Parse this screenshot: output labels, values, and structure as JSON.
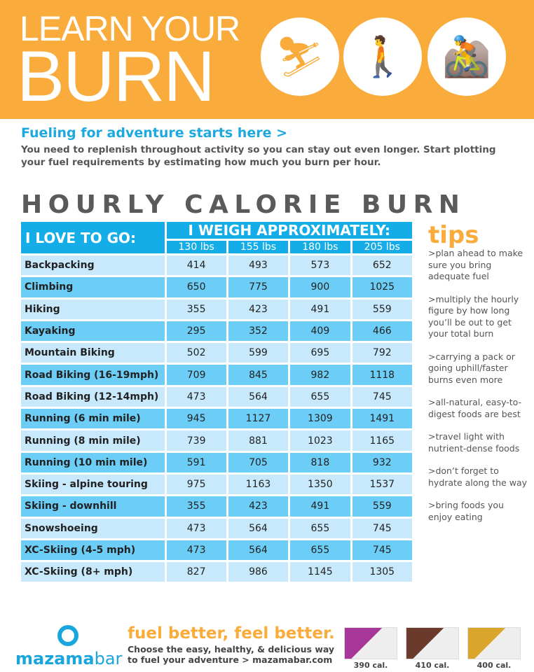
{
  "header": {
    "line1": "LEARN YOUR",
    "line2": "BURN",
    "icons": [
      "skier-icon",
      "hiker-icon",
      "mountain-biker-icon"
    ]
  },
  "subtitle": "Fueling for adventure starts here >",
  "intro": "You need to replenish throughout activity so you can stay out even longer. Start plotting your fuel requirements by estimating how much you burn per hour.",
  "title": "HOURLY CALORIE BURN",
  "table": {
    "activity_header": "I LOVE TO GO:",
    "weight_header": "I WEIGH APPROXIMATELY:",
    "weights": [
      "130 lbs",
      "155 lbs",
      "180 lbs",
      "205 lbs"
    ],
    "rows": [
      {
        "activity": "Backpacking",
        "values": [
          "414",
          "493",
          "573",
          "652"
        ]
      },
      {
        "activity": "Climbing",
        "values": [
          "650",
          "775",
          "900",
          "1025"
        ]
      },
      {
        "activity": "Hiking",
        "values": [
          "355",
          "423",
          "491",
          "559"
        ]
      },
      {
        "activity": "Kayaking",
        "values": [
          "295",
          "352",
          "409",
          "466"
        ]
      },
      {
        "activity": "Mountain Biking",
        "values": [
          "502",
          "599",
          "695",
          "792"
        ]
      },
      {
        "activity": "Road Biking (16-19mph)",
        "values": [
          "709",
          "845",
          "982",
          "1118"
        ]
      },
      {
        "activity": "Road Biking (12-14mph)",
        "values": [
          "473",
          "564",
          "655",
          "745"
        ]
      },
      {
        "activity": "Running (6 min mile)",
        "values": [
          "945",
          "1127",
          "1309",
          "1491"
        ]
      },
      {
        "activity": "Running (8 min mile)",
        "values": [
          "739",
          "881",
          "1023",
          "1165"
        ]
      },
      {
        "activity": "Running (10 min mile)",
        "values": [
          "591",
          "705",
          "818",
          "932"
        ]
      },
      {
        "activity": "Skiing - alpine touring",
        "values": [
          "975",
          "1163",
          "1350",
          "1537"
        ]
      },
      {
        "activity": "Skiing - downhill",
        "values": [
          "355",
          "423",
          "491",
          "559"
        ]
      },
      {
        "activity": "Snowshoeing",
        "values": [
          "473",
          "564",
          "655",
          "745"
        ]
      },
      {
        "activity": "XC-Skiing (4-5 mph)",
        "values": [
          "473",
          "564",
          "655",
          "745"
        ]
      },
      {
        "activity": "XC-Skiing (8+ mph)",
        "values": [
          "827",
          "986",
          "1145",
          "1305"
        ]
      }
    ]
  },
  "tips": {
    "heading": "tips",
    "items": [
      ">plan ahead to make sure you bring adequate fuel",
      ">multiply the hourly figure by how long you’ll be out to get your total burn",
      ">carrying a pack or going uphill/faster burns even more",
      ">all-natural, easy-to-digest foods are best",
      ">travel light with nutrient-dense foods",
      ">don’t forget to hydrate along the way",
      ">bring foods you enjoy eating"
    ]
  },
  "footer": {
    "brand_a": "mazama",
    "brand_b": "bar",
    "tagline": "fuel better, feel better.",
    "line1": "Choose the easy, healthy, & delicious way",
    "line2": "to fuel your adventure > mazamabar.com",
    "bars": [
      {
        "cal": "390 cal.",
        "color": "#a8379a"
      },
      {
        "cal": "410 cal.",
        "color": "#6b3a2a"
      },
      {
        "cal": "400 cal.",
        "color": "#d9a52a"
      }
    ]
  },
  "colors": {
    "orange": "#f9ac3b",
    "blue": "#14ade8",
    "row_light": "#c8e9fb",
    "row_dark": "#6ccdf6"
  }
}
